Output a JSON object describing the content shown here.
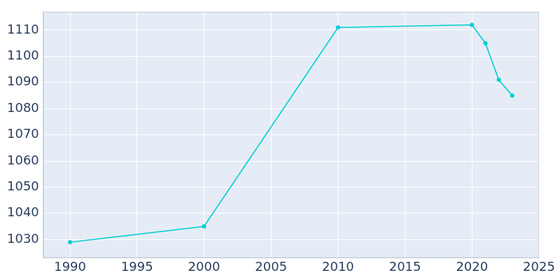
{
  "chart_data": {
    "type": "line",
    "x": [
      1990,
      2000,
      2010,
      2020,
      2021,
      2022,
      2023
    ],
    "values": [
      1029,
      1035,
      1111,
      1112,
      1105,
      1091,
      1085
    ],
    "color": "#00ced1",
    "marker": "circle",
    "xlim": [
      1988,
      2025
    ],
    "xticks": [
      1990,
      1995,
      2000,
      2005,
      2010,
      2015,
      2020,
      2025
    ],
    "ylim": [
      1023,
      1117
    ],
    "yticks": [
      1030,
      1040,
      1050,
      1060,
      1070,
      1080,
      1090,
      1100,
      1110
    ],
    "grid": true
  }
}
